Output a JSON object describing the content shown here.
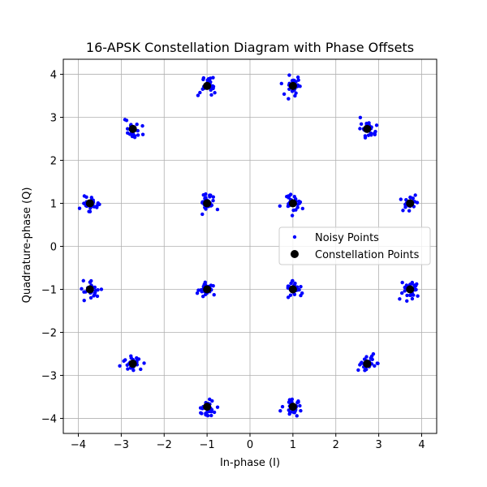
{
  "chart_data": {
    "type": "scatter",
    "title": "16-APSK Constellation Diagram with Phase Offsets",
    "xlabel": "In-phase (I)",
    "ylabel": "Quadrature-phase (Q)",
    "xlim": [
      -4.35,
      4.35
    ],
    "ylim": [
      -4.35,
      4.35
    ],
    "xticks": [
      -4,
      -3,
      -2,
      -1,
      0,
      1,
      2,
      3,
      4
    ],
    "yticks": [
      -4,
      -3,
      -2,
      -1,
      0,
      1,
      2,
      3,
      4
    ],
    "grid": true,
    "legend_position": "center-right",
    "series": [
      {
        "name": "Noisy Points",
        "color": "#0000ff",
        "marker": "small-dot",
        "points_per_symbol": 30,
        "noise_std": 0.1
      },
      {
        "name": "Constellation Points",
        "color": "#000000",
        "marker": "large-dot",
        "points": [
          [
            1.0,
            1.0
          ],
          [
            -1.0,
            1.0
          ],
          [
            -1.0,
            -1.0
          ],
          [
            1.0,
            -1.0
          ],
          [
            3.73,
            1.0
          ],
          [
            2.73,
            2.73
          ],
          [
            1.0,
            3.73
          ],
          [
            -1.0,
            3.73
          ],
          [
            -2.73,
            2.73
          ],
          [
            -3.73,
            1.0
          ],
          [
            -3.73,
            -1.0
          ],
          [
            -2.73,
            -2.73
          ],
          [
            -1.0,
            -3.73
          ],
          [
            1.0,
            -3.73
          ],
          [
            2.73,
            -2.73
          ],
          [
            3.73,
            -1.0
          ]
        ]
      }
    ]
  }
}
